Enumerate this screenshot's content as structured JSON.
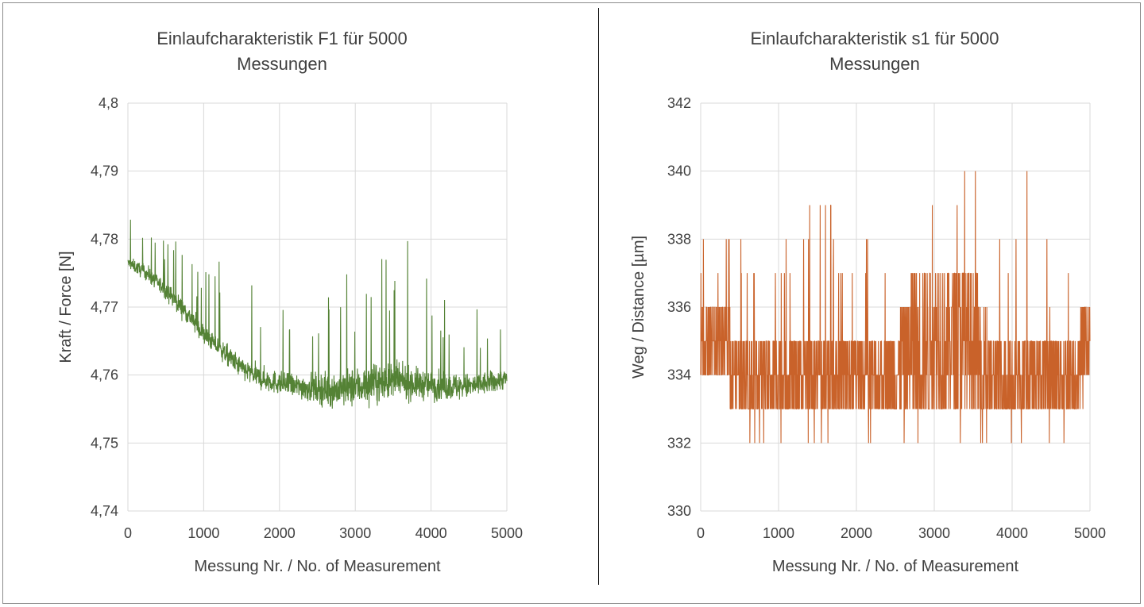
{
  "chart_data": [
    {
      "type": "line",
      "title": "Einlaufcharakteristik F1 für 5000 Messungen",
      "title_lines": [
        "Einlaufcharakteristik F1 für 5000",
        "Messungen"
      ],
      "xlabel": "Messung Nr. / No. of Measurement",
      "ylabel": "Kraft / Force [N]",
      "xlim": [
        0,
        5000
      ],
      "ylim": [
        4.74,
        4.8
      ],
      "x_ticks": [
        0,
        1000,
        2000,
        3000,
        4000,
        5000
      ],
      "x_tick_labels": [
        "0",
        "1000",
        "2000",
        "3000",
        "4000",
        "5000"
      ],
      "y_ticks": [
        4.74,
        4.75,
        4.76,
        4.77,
        4.78,
        4.79,
        4.8
      ],
      "y_tick_labels": [
        "4,74",
        "4,75",
        "4,76",
        "4,77",
        "4,78",
        "4,79",
        "4,8"
      ],
      "grid": true,
      "color": "#548235",
      "series": [
        {
          "x": [
            0,
            250,
            500,
            750,
            1000,
            1250,
            1500,
            1750,
            2000,
            2250,
            2500,
            2750,
            3000,
            3250,
            3500,
            3750,
            4000,
            4250,
            4500,
            4750,
            5000
          ],
          "center": [
            4.7765,
            4.775,
            4.7725,
            4.7695,
            4.766,
            4.7635,
            4.761,
            4.7595,
            4.7588,
            4.7583,
            4.758,
            4.7578,
            4.7582,
            4.7588,
            4.759,
            4.7588,
            4.7585,
            4.7583,
            4.7583,
            4.7588,
            4.7595
          ],
          "min": [
            4.7745,
            4.772,
            4.77,
            4.7665,
            4.763,
            4.7595,
            4.757,
            4.7555,
            4.755,
            4.7545,
            4.7515,
            4.7503,
            4.7515,
            4.753,
            4.7535,
            4.754,
            4.7538,
            4.7535,
            4.7538,
            4.755,
            4.756
          ],
          "max": [
            4.788,
            4.784,
            4.7815,
            4.7795,
            4.775,
            4.7805,
            4.7825,
            4.7745,
            4.772,
            4.7718,
            4.7725,
            4.775,
            4.7755,
            4.776,
            4.7805,
            4.7805,
            4.7735,
            4.772,
            4.7705,
            4.7695,
            4.7705
          ],
          "noise": [
            0.0009,
            0.0012,
            0.0013,
            0.0015,
            0.0015,
            0.0016,
            0.0017,
            0.0018,
            0.0018,
            0.0019,
            0.0024,
            0.0028,
            0.003,
            0.0029,
            0.0027,
            0.0025,
            0.0023,
            0.0022,
            0.002,
            0.0018,
            0.0016
          ]
        }
      ]
    },
    {
      "type": "line",
      "title": "Einlaufcharakteristik s1 für 5000 Messungen",
      "title_lines": [
        "Einlaufcharakteristik s1 für 5000",
        "Messungen"
      ],
      "xlabel": "Messung Nr. / No. of Measurement",
      "ylabel": "Weg / Distance [µm]",
      "xlim": [
        0,
        5000
      ],
      "ylim": [
        330,
        342
      ],
      "x_ticks": [
        0,
        1000,
        2000,
        3000,
        4000,
        5000
      ],
      "x_tick_labels": [
        "0",
        "1000",
        "2000",
        "3000",
        "4000",
        "5000"
      ],
      "y_ticks": [
        330,
        332,
        334,
        336,
        338,
        340,
        342
      ],
      "y_tick_labels": [
        "330",
        "332",
        "334",
        "336",
        "338",
        "340",
        "342"
      ],
      "grid": true,
      "color": "#C9622A",
      "series": [
        {
          "x": [
            0,
            250,
            500,
            750,
            1000,
            1250,
            1500,
            1750,
            2000,
            2250,
            2500,
            2750,
            3000,
            3250,
            3500,
            3750,
            4000,
            4250,
            4500,
            4750,
            5000
          ],
          "band_low": [
            334,
            334,
            333,
            333,
            333,
            333,
            333,
            333,
            333,
            333,
            333,
            333,
            333,
            333,
            333,
            333,
            333,
            333,
            333,
            333,
            334
          ],
          "band_high": [
            336,
            336,
            335,
            335,
            335,
            335,
            335,
            335,
            335,
            335,
            335,
            337,
            337,
            337,
            337,
            335,
            335,
            335,
            335,
            335,
            336
          ],
          "min": [
            334,
            334,
            333,
            332,
            332,
            332,
            332,
            332,
            332,
            332,
            332,
            332,
            331,
            332,
            332,
            332,
            332,
            332,
            332,
            332,
            334
          ],
          "max": [
            338,
            338,
            338,
            338,
            338,
            338,
            340,
            338,
            338,
            338,
            338,
            339,
            339,
            338,
            341,
            339,
            338,
            340,
            337,
            337,
            336
          ]
        }
      ]
    }
  ]
}
